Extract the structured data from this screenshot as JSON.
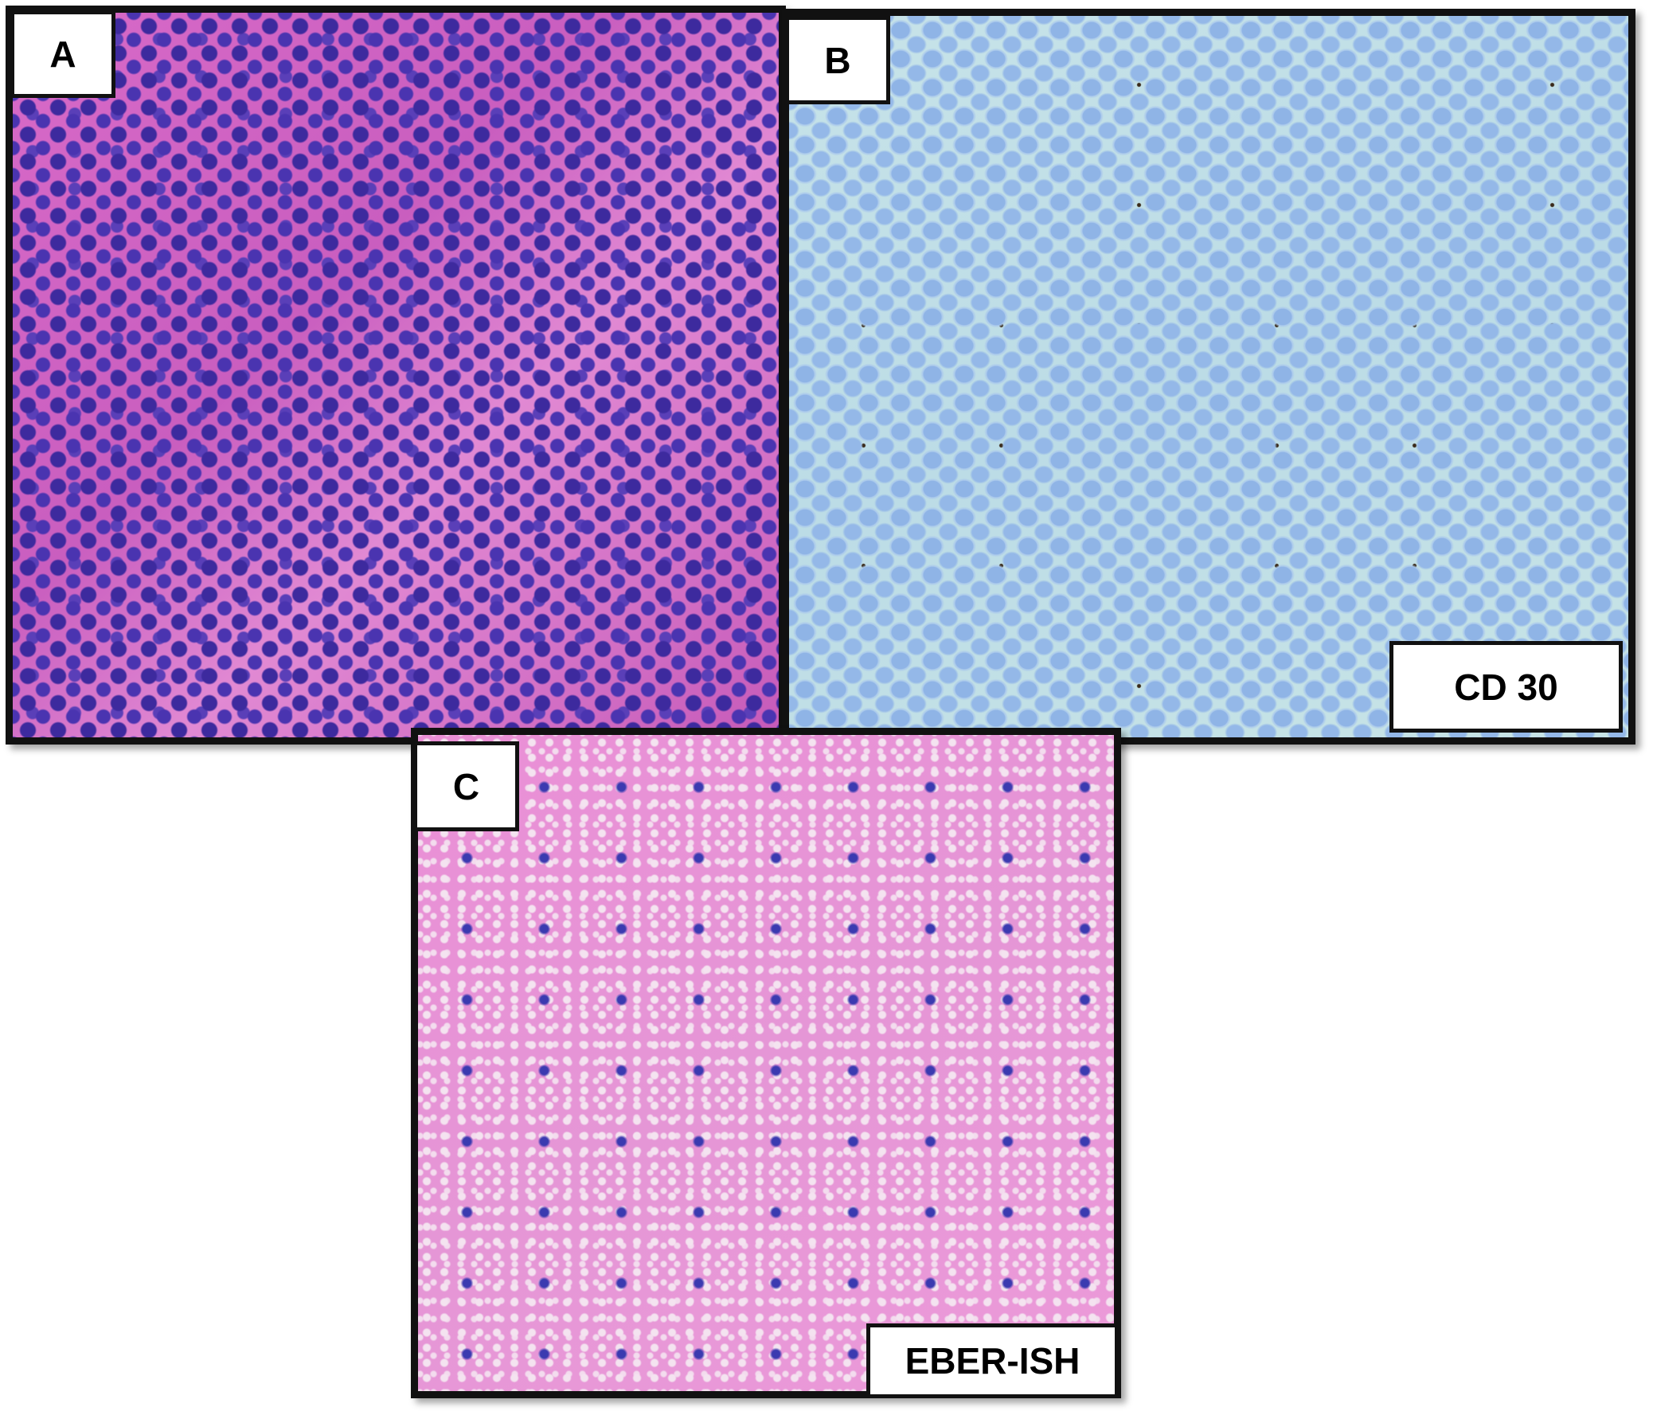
{
  "panels": [
    {
      "letter": "A",
      "stain": ""
    },
    {
      "letter": "B",
      "stain": "CD 30"
    },
    {
      "letter": "C",
      "stain": "EBER-ISH"
    }
  ],
  "colors": {
    "he_stain": "#d86ac8",
    "cd30_background": "#c7e3e8",
    "eber_background": "#ea8fd6",
    "border": "#111111"
  }
}
